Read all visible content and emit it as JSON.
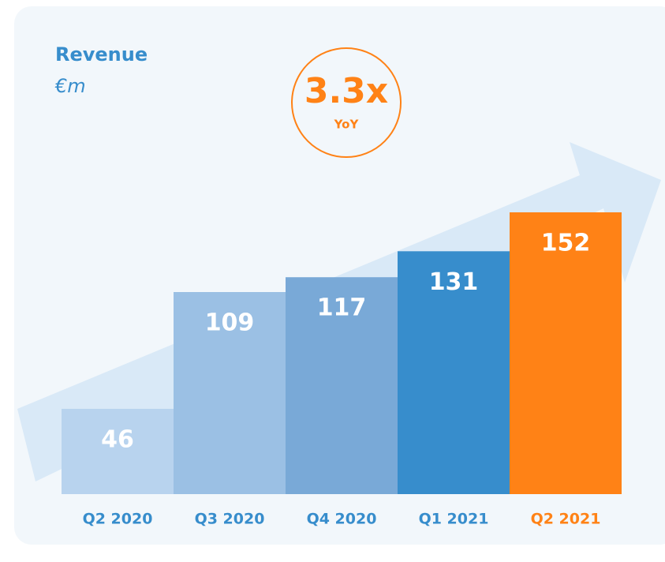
{
  "chart_data": {
    "type": "bar",
    "title": "Revenue",
    "subtitle": "€m",
    "annotations": [
      "3.3x",
      "YoY"
    ],
    "categories": [
      "Q2 2020",
      "Q3 2020",
      "Q4 2020",
      "Q1 2021",
      "Q2 2021"
    ],
    "values": [
      46,
      109,
      117,
      131,
      152
    ],
    "colors": [
      "#b8d3ee",
      "#9bc0e4",
      "#79a9d7",
      "#378dcc",
      "#ff8216"
    ],
    "label_colors": [
      "#378dcc",
      "#378dcc",
      "#378dcc",
      "#378dcc",
      "#ff8216"
    ]
  }
}
